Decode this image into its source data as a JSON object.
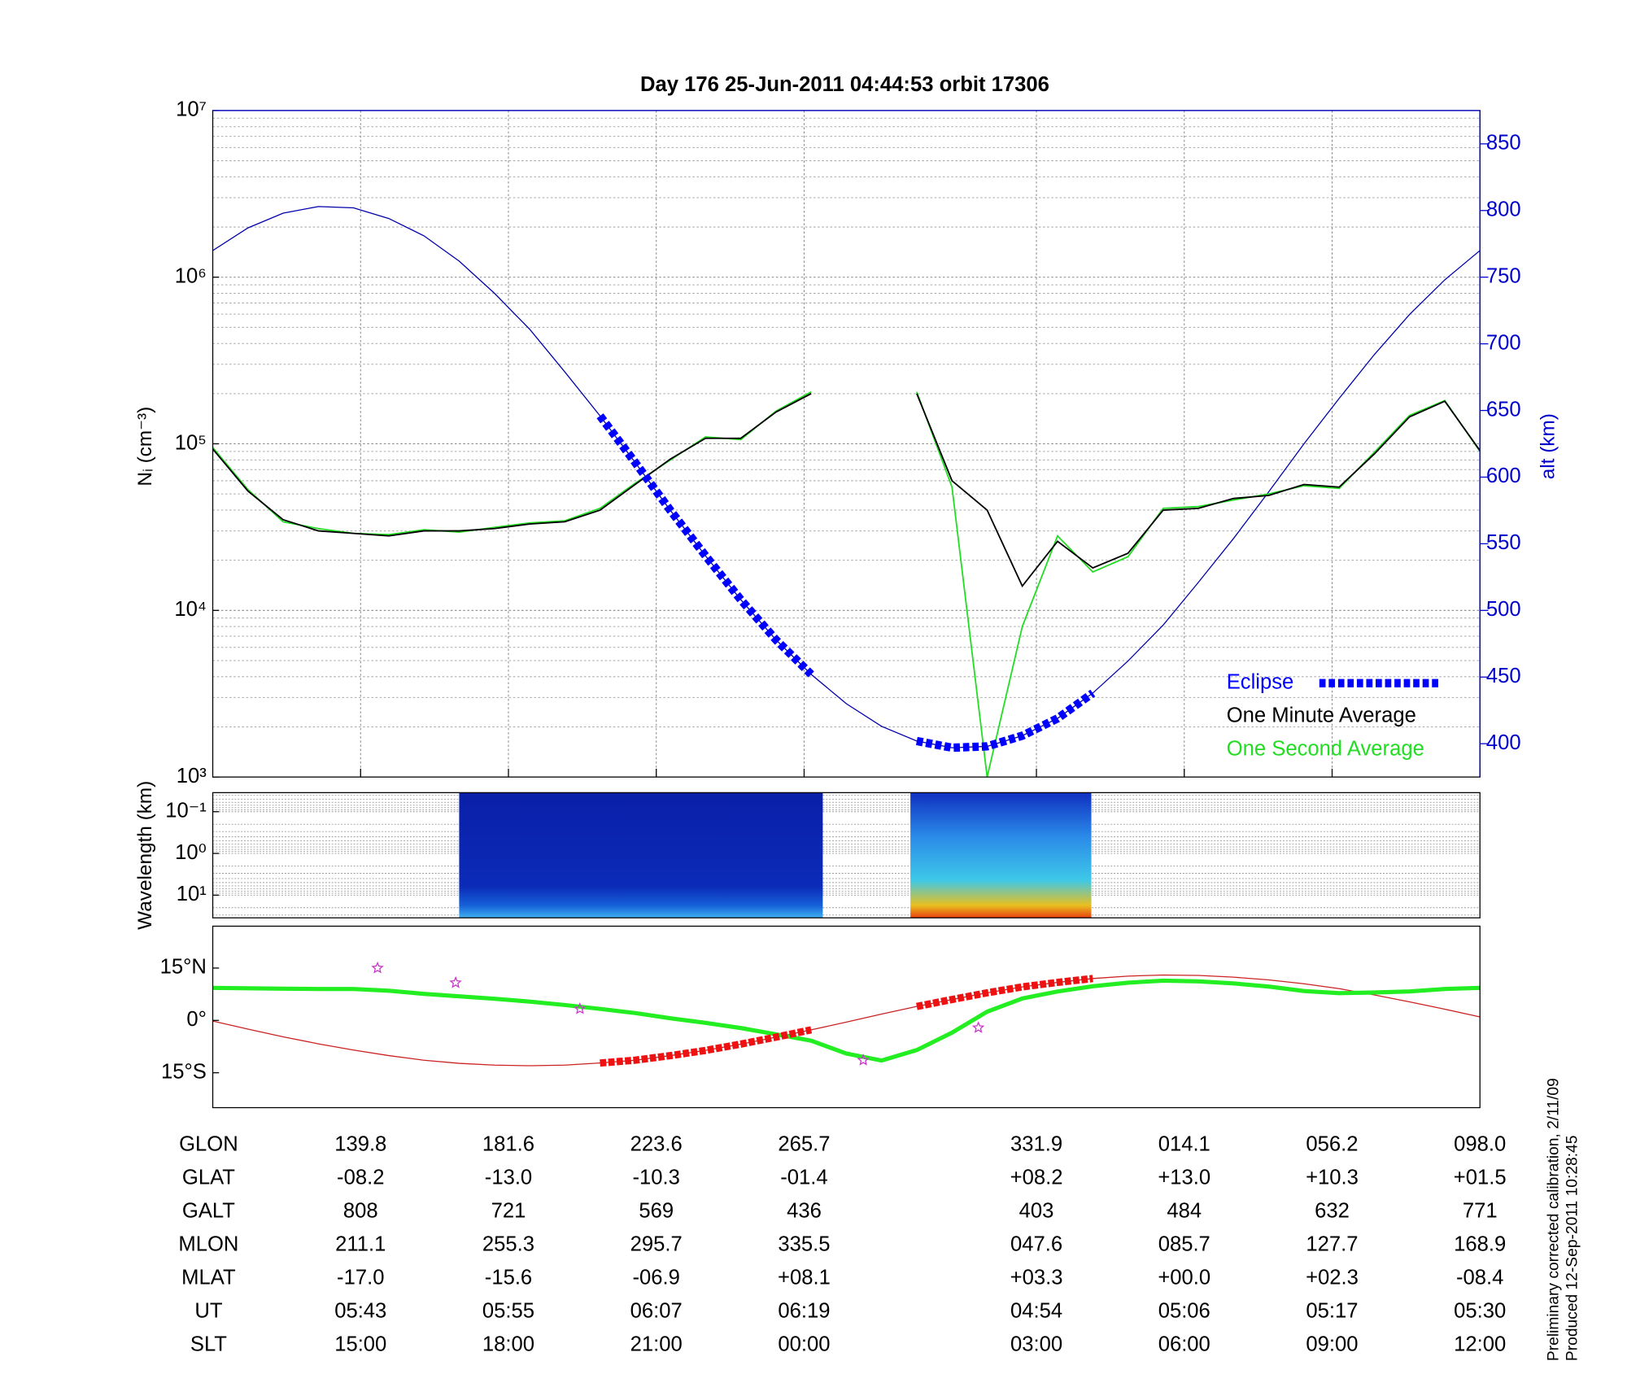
{
  "chart_data": [
    {
      "type": "line",
      "title": "Day 176  25-Jun-2011 04:44:53   orbit 17306",
      "ylabel": "Nᵢ (cm⁻³)",
      "y2label": "alt (km)",
      "x": [
        98,
        108,
        118,
        128,
        138,
        148,
        158,
        168,
        178,
        188,
        198,
        208,
        218,
        228,
        238,
        248,
        258,
        268,
        278,
        288,
        298,
        308,
        318,
        328,
        338,
        348,
        358,
        368,
        378,
        388,
        398,
        408,
        418,
        428,
        438,
        448,
        458
      ],
      "xlim": [
        98,
        458
      ],
      "xticks": [
        140,
        182,
        224,
        266,
        332,
        374,
        416,
        458
      ],
      "ylim": [
        1000,
        10000000
      ],
      "yscale": "log",
      "yticks": [
        {
          "value": 1000,
          "label": "10³"
        },
        {
          "value": 10000,
          "label": "10⁴"
        },
        {
          "value": 100000,
          "label": "10⁵"
        },
        {
          "value": 1000000,
          "label": "10⁶"
        },
        {
          "value": 10000000,
          "label": "10⁷"
        }
      ],
      "y2lim": [
        375,
        875
      ],
      "y2ticks": [
        400,
        450,
        500,
        550,
        600,
        650,
        700,
        750,
        800,
        850
      ],
      "grid": true,
      "legend": "lower right",
      "series": [
        {
          "name": "Eclipse",
          "color": "#0000ff",
          "axis": "y2",
          "style": "dashed",
          "values": [
            null,
            null,
            null,
            null,
            null,
            null,
            null,
            null,
            null,
            null,
            null,
            646,
            611,
            575,
            541,
            508,
            478,
            452,
            null,
            null,
            402,
            397,
            398,
            406,
            419,
            438,
            null,
            null,
            null,
            null,
            null,
            null,
            null,
            null,
            null,
            null,
            null
          ]
        },
        {
          "name": "One Minute Average",
          "color": "#000000",
          "values": [
            93000,
            52000,
            35000,
            30000,
            29000,
            28000,
            30000,
            30000,
            31000,
            33000,
            34000,
            40000,
            57000,
            81000,
            108000,
            108000,
            155000,
            200000,
            null,
            null,
            200000,
            60000,
            40000,
            14000,
            26000,
            18000,
            22000,
            40000,
            41000,
            47000,
            49000,
            57000,
            55000,
            87000,
            145000,
            180000,
            91000
          ]
        },
        {
          "name": "One Second Average",
          "color": "#22dd22",
          "values": [
            95000,
            53000,
            34000,
            31000,
            29000,
            28500,
            30500,
            29500,
            31500,
            33500,
            34500,
            41000,
            58000,
            80000,
            110000,
            106000,
            157000,
            205000,
            null,
            null,
            205000,
            55000,
            1000,
            8000,
            28000,
            17000,
            21000,
            41000,
            42000,
            46000,
            50000,
            56000,
            54000,
            89000,
            148000,
            182000,
            90000
          ]
        },
        {
          "color": "#0000aa",
          "axis": "y2",
          "values": [
            770,
            787,
            798,
            803,
            802,
            794,
            781,
            762,
            738,
            711,
            679,
            646,
            611,
            575,
            541,
            508,
            478,
            452,
            430,
            413,
            402,
            397,
            398,
            406,
            419,
            438,
            462,
            489,
            521,
            554,
            589,
            625,
            659,
            692,
            722,
            748,
            770
          ]
        }
      ]
    },
    {
      "type": "spectrogram",
      "ylabel": "Wavelength (km)",
      "ylim": [
        0.035,
        35
      ],
      "yscale": "log",
      "yinvert": true,
      "yticks": [
        {
          "value": 0.1,
          "label": "10⁻¹"
        },
        {
          "value": 1,
          "label": "10⁰"
        },
        {
          "value": 10,
          "label": "10¹"
        }
      ],
      "xlim": [
        98,
        458
      ],
      "blocks": [
        [
          168,
          271.3
        ],
        [
          296.2,
          347.6
        ]
      ]
    },
    {
      "type": "map",
      "x": [
        98,
        108,
        118,
        128,
        138,
        148,
        158,
        168,
        178,
        188,
        198,
        208,
        218,
        228,
        238,
        248,
        258,
        268,
        278,
        288,
        298,
        308,
        318,
        328,
        338,
        348,
        358,
        368,
        378,
        388,
        398,
        408,
        418,
        428,
        438,
        448,
        458
      ],
      "xlim": [
        98,
        458
      ],
      "ylim": [
        -25,
        27
      ],
      "yticks": [
        {
          "value": 15,
          "label": "15°N"
        },
        {
          "value": 0,
          "label": "0°"
        },
        {
          "value": -15,
          "label": "15°S"
        }
      ],
      "series": [
        {
          "color": "#cc2222",
          "values": [
            -0.2,
            -2.5,
            -4.7,
            -6.7,
            -8.5,
            -10.1,
            -11.4,
            -12.3,
            -12.8,
            -13.0,
            -12.8,
            -12.2,
            -11.4,
            -10.1,
            -8.6,
            -6.8,
            -4.8,
            -2.7,
            -0.5,
            1.8,
            4.0,
            6.0,
            7.9,
            9.6,
            10.9,
            12.0,
            12.7,
            13.0,
            12.9,
            12.4,
            11.6,
            10.5,
            9.1,
            7.3,
            5.3,
            3.2,
            1.0
          ]
        },
        {
          "color": "#22ee22",
          "values": [
            9.3,
            9.2,
            9.1,
            9.0,
            9.0,
            8.5,
            7.6,
            6.9,
            6.2,
            5.4,
            4.4,
            3.3,
            2.1,
            0.6,
            -0.7,
            -2.2,
            -4.0,
            -5.8,
            -9.5,
            -11.5,
            -8.5,
            -3.5,
            2.5,
            6.3,
            8.3,
            9.8,
            10.8,
            11.4,
            11.2,
            10.6,
            9.7,
            8.4,
            7.8,
            8.0,
            8.3,
            9.0,
            9.3
          ]
        },
        {
          "color": "#ee1111",
          "style": "dashed",
          "values": [
            null,
            null,
            null,
            null,
            null,
            null,
            null,
            null,
            null,
            null,
            null,
            -12.2,
            -11.4,
            -10.1,
            -8.6,
            -6.8,
            -4.8,
            -2.7,
            null,
            null,
            4.0,
            6.0,
            7.9,
            9.6,
            10.9,
            12.0,
            null,
            null,
            null,
            null,
            null,
            null,
            null,
            null,
            null,
            null,
            null
          ]
        }
      ],
      "stars": {
        "color": "#cc33cc",
        "x": [
          144.8,
          167.0,
          202.3,
          282.8,
          315.5
        ],
        "y": [
          15,
          10.8,
          3.3,
          -11.4,
          -2.1
        ]
      }
    }
  ],
  "table": {
    "rows": [
      {
        "label": "GLON",
        "cells": [
          "139.8",
          "181.6",
          "223.6",
          "265.7",
          "331.9",
          "014.1",
          "056.2",
          "098.0"
        ]
      },
      {
        "label": "GLAT",
        "cells": [
          "-08.2",
          "-13.0",
          "-10.3",
          "-01.4",
          "+08.2",
          "+13.0",
          "+10.3",
          "+01.5"
        ]
      },
      {
        "label": "GALT",
        "cells": [
          "808",
          "721",
          "569",
          "436",
          "403",
          "484",
          "632",
          "771"
        ]
      },
      {
        "label": "MLON",
        "cells": [
          "211.1",
          "255.3",
          "295.7",
          "335.5",
          "047.6",
          "085.7",
          "127.7",
          "168.9"
        ]
      },
      {
        "label": "MLAT",
        "cells": [
          "-17.0",
          "-15.6",
          "-06.9",
          "+08.1",
          "+03.3",
          "+00.0",
          "+02.3",
          "-08.4"
        ]
      },
      {
        "label": "UT",
        "cells": [
          "05:43",
          "05:55",
          "06:07",
          "06:19",
          "04:54",
          "05:06",
          "05:17",
          "05:30"
        ]
      },
      {
        "label": "SLT",
        "cells": [
          "15:00",
          "18:00",
          "21:00",
          "00:00",
          "03:00",
          "06:00",
          "09:00",
          "12:00"
        ]
      }
    ]
  },
  "footnotes": [
    "Preliminary corrected calibration, 2/11/09",
    "Produced 12-Sep-2011 10:28:45"
  ]
}
